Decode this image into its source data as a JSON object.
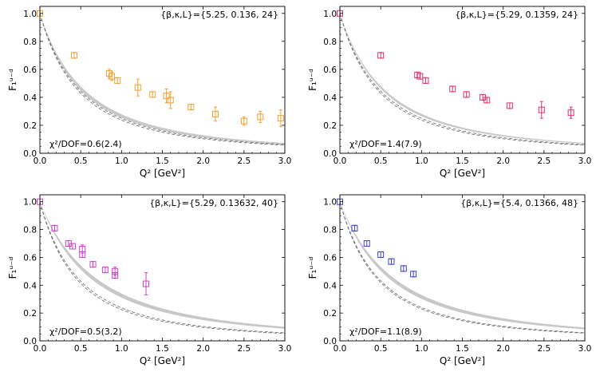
{
  "chart_data": [
    {
      "type": "scatter",
      "annotation": "{β,κ,L}={5.25, 0.136, 24}",
      "chi2_label": "χ²/DOF=0.6(2.4)",
      "xlabel": "Q² [GeV²]",
      "ylabel": "F₁ᵘ⁻ᵈ",
      "xlim": [
        0,
        3
      ],
      "ylim": [
        0,
        1.05
      ],
      "xticks": [
        "0.0",
        "0.5",
        "1.0",
        "1.5",
        "2.0",
        "2.5",
        "3.0"
      ],
      "yticks": [
        "0.0",
        "0.2",
        "0.4",
        "0.6",
        "0.8",
        "1.0"
      ],
      "color": "#f0a030",
      "points": [
        {
          "x": 0.0,
          "y": 1.0,
          "err": 0.0
        },
        {
          "x": 0.42,
          "y": 0.7,
          "err": 0.02
        },
        {
          "x": 0.85,
          "y": 0.57,
          "err": 0.03
        },
        {
          "x": 0.88,
          "y": 0.55,
          "err": 0.03
        },
        {
          "x": 0.95,
          "y": 0.52,
          "err": 0.02
        },
        {
          "x": 1.2,
          "y": 0.47,
          "err": 0.06
        },
        {
          "x": 1.38,
          "y": 0.42,
          "err": 0.02
        },
        {
          "x": 1.55,
          "y": 0.41,
          "err": 0.05
        },
        {
          "x": 1.6,
          "y": 0.38,
          "err": 0.06
        },
        {
          "x": 1.85,
          "y": 0.33,
          "err": 0.02
        },
        {
          "x": 2.15,
          "y": 0.28,
          "err": 0.05
        },
        {
          "x": 2.5,
          "y": 0.23,
          "err": 0.03
        },
        {
          "x": 2.7,
          "y": 0.26,
          "err": 0.04
        },
        {
          "x": 2.95,
          "y": 0.25,
          "err": 0.06
        }
      ],
      "band": {
        "type": "dipole",
        "m2_low": 1.02,
        "m2_high": 1.12
      },
      "dashed_fits": [
        0.95,
        1.0
      ]
    },
    {
      "type": "scatter",
      "annotation": "{β,κ,L}={5.29, 0.1359, 24}",
      "chi2_label": "χ²/DOF=1.4(7.9)",
      "xlabel": "Q² [GeV²]",
      "ylabel": "F₁ᵘ⁻ᵈ",
      "xlim": [
        0,
        3
      ],
      "ylim": [
        0,
        1.05
      ],
      "xticks": [
        "0.0",
        "0.5",
        "1.0",
        "1.5",
        "2.0",
        "2.5",
        "3.0"
      ],
      "yticks": [
        "0.0",
        "0.2",
        "0.4",
        "0.6",
        "0.8",
        "1.0"
      ],
      "color": "#e0306a",
      "points": [
        {
          "x": 0.0,
          "y": 1.0,
          "err": 0.0
        },
        {
          "x": 0.5,
          "y": 0.7,
          "err": 0.02
        },
        {
          "x": 0.95,
          "y": 0.56,
          "err": 0.02
        },
        {
          "x": 0.98,
          "y": 0.55,
          "err": 0.02
        },
        {
          "x": 1.05,
          "y": 0.52,
          "err": 0.02
        },
        {
          "x": 1.38,
          "y": 0.46,
          "err": 0.02
        },
        {
          "x": 1.55,
          "y": 0.42,
          "err": 0.02
        },
        {
          "x": 1.75,
          "y": 0.4,
          "err": 0.02
        },
        {
          "x": 1.8,
          "y": 0.38,
          "err": 0.02
        },
        {
          "x": 2.08,
          "y": 0.34,
          "err": 0.02
        },
        {
          "x": 2.47,
          "y": 0.31,
          "err": 0.06
        },
        {
          "x": 2.83,
          "y": 0.29,
          "err": 0.04
        }
      ],
      "band": {
        "type": "dipole",
        "m2_low": 1.06,
        "m2_high": 1.13
      },
      "dashed_fits": [
        0.95,
        1.0
      ]
    },
    {
      "type": "scatter",
      "annotation": "{β,κ,L}={5.29, 0.13632, 40}",
      "chi2_label": "χ²/DOF=0.5(3.2)",
      "xlabel": "Q² [GeV²]",
      "ylabel": "F₁ᵘ⁻ᵈ",
      "xlim": [
        0,
        3
      ],
      "ylim": [
        0,
        1.05
      ],
      "xticks": [
        "0.0",
        "0.5",
        "1.0",
        "1.5",
        "2.0",
        "2.5",
        "3.0"
      ],
      "yticks": [
        "0.0",
        "0.2",
        "0.4",
        "0.6",
        "0.8",
        "1.0"
      ],
      "color": "#d040c8",
      "points": [
        {
          "x": 0.0,
          "y": 1.0,
          "err": 0.0
        },
        {
          "x": 0.18,
          "y": 0.81,
          "err": 0.02
        },
        {
          "x": 0.35,
          "y": 0.7,
          "err": 0.02
        },
        {
          "x": 0.4,
          "y": 0.68,
          "err": 0.02
        },
        {
          "x": 0.52,
          "y": 0.66,
          "err": 0.03
        },
        {
          "x": 0.52,
          "y": 0.62,
          "err": 0.02
        },
        {
          "x": 0.65,
          "y": 0.55,
          "err": 0.02
        },
        {
          "x": 0.8,
          "y": 0.51,
          "err": 0.02
        },
        {
          "x": 0.92,
          "y": 0.5,
          "err": 0.03
        },
        {
          "x": 0.92,
          "y": 0.47,
          "err": 0.02
        },
        {
          "x": 1.3,
          "y": 0.41,
          "err": 0.08
        }
      ],
      "band": {
        "type": "dipole",
        "m2_low": 1.26,
        "m2_high": 1.4
      },
      "dashed_fits": [
        0.9,
        0.95
      ]
    },
    {
      "type": "scatter",
      "annotation": "{β,κ,L}={5.4, 0.1366, 48}",
      "chi2_label": "χ²/DOF=1.1(8.9)",
      "xlabel": "Q² [GeV²]",
      "ylabel": "F₁ᵘ⁻ᵈ",
      "xlim": [
        0,
        3
      ],
      "ylim": [
        0,
        1.05
      ],
      "xticks": [
        "0.0",
        "0.5",
        "1.0",
        "1.5",
        "2.0",
        "2.5",
        "3.0"
      ],
      "yticks": [
        "0.0",
        "0.2",
        "0.4",
        "0.6",
        "0.8",
        "1.0"
      ],
      "color": "#4040cc",
      "points": [
        {
          "x": 0.0,
          "y": 1.0,
          "err": 0.0
        },
        {
          "x": 0.18,
          "y": 0.81,
          "err": 0.02
        },
        {
          "x": 0.33,
          "y": 0.7,
          "err": 0.02
        },
        {
          "x": 0.5,
          "y": 0.62,
          "err": 0.02
        },
        {
          "x": 0.63,
          "y": 0.57,
          "err": 0.02
        },
        {
          "x": 0.78,
          "y": 0.52,
          "err": 0.02
        },
        {
          "x": 0.9,
          "y": 0.48,
          "err": 0.02
        }
      ],
      "band": {
        "type": "dipole",
        "m2_low": 1.22,
        "m2_high": 1.35
      },
      "dashed_fits": [
        0.92,
        0.96
      ]
    }
  ]
}
